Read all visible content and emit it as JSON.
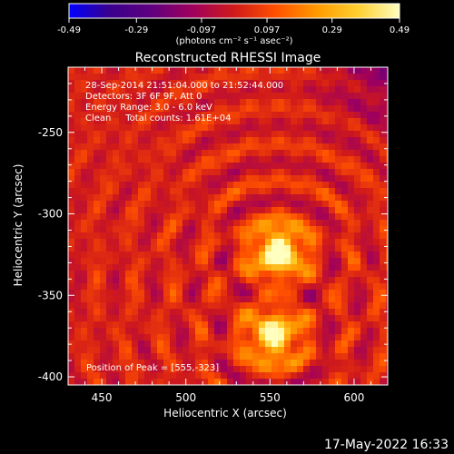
{
  "colorbar": {
    "ticks": [
      "-0.49",
      "-0.29",
      "-0.097",
      "0.097",
      "0.29",
      "0.49"
    ],
    "unit_label": "(photons cm⁻² s⁻¹ asec⁻²)",
    "range": [
      -0.49,
      0.49
    ]
  },
  "chart_data": {
    "type": "heatmap",
    "title": "Reconstructed RHESSI Image",
    "xlabel": "Heliocentric X (arcsec)",
    "ylabel": "Heliocentric Y (arcsec)",
    "xlim": [
      430,
      620
    ],
    "ylim": [
      -405,
      -210
    ],
    "xticks": [
      450,
      500,
      550,
      600
    ],
    "yticks": [
      -250,
      -300,
      -350,
      -400
    ],
    "annotations": [
      "28-Sep-2014 21:51:04.000 to 21:52:44.000",
      "Detectors: 3F 6F 9F, Att 0",
      "Energy Range: 3.0 - 6.0 keV",
      "Clean     Total counts: 1.61E+04"
    ],
    "peak_label": "Position of Peak = [555,-323]",
    "sources": [
      {
        "x": 555,
        "y": -323,
        "intensity": 0.49
      },
      {
        "x": 552,
        "y": -375,
        "intensity": 0.42
      }
    ],
    "colormap": [
      "#0000ff",
      "#3a008c",
      "#600080",
      "#a0005c",
      "#d01a1a",
      "#ff5000",
      "#ff9a00",
      "#ffd030",
      "#ffffc0"
    ]
  },
  "footer": {
    "timestamp": "17-May-2022 16:33"
  }
}
